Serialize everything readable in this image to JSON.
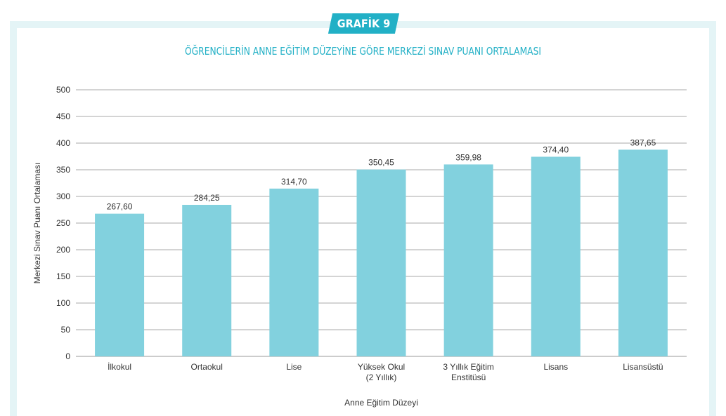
{
  "badge": "GRAFİK 9",
  "chart_data": {
    "type": "bar",
    "title": "ÖĞRENCİLERİN ANNE EĞİTİM DÜZEYİNE GÖRE MERKEZİ SINAV PUANI ORTALAMASI",
    "xlabel": "Anne Eğitim Düzeyi",
    "ylabel": "Merkezi Sınav Puanı Ortalaması",
    "categories": [
      [
        "İlkokul"
      ],
      [
        "Ortaokul"
      ],
      [
        "Lise"
      ],
      [
        "Yüksek Okul",
        "(2 Yıllık)"
      ],
      [
        "3 Yıllık Eğitim",
        "Enstitüsü"
      ],
      [
        "Lisans"
      ],
      [
        "Lisansüstü"
      ]
    ],
    "values": [
      267.6,
      284.25,
      314.7,
      350.45,
      359.98,
      374.4,
      387.65
    ],
    "value_labels": [
      "267,60",
      "284,25",
      "314,70",
      "350,45",
      "359,98",
      "374,40",
      "387,65"
    ],
    "ylim": [
      0,
      500
    ],
    "yticks": [
      0,
      50,
      100,
      150,
      200,
      250,
      300,
      350,
      400,
      450,
      500
    ],
    "grid": true,
    "bar_color": "#82d1de"
  }
}
